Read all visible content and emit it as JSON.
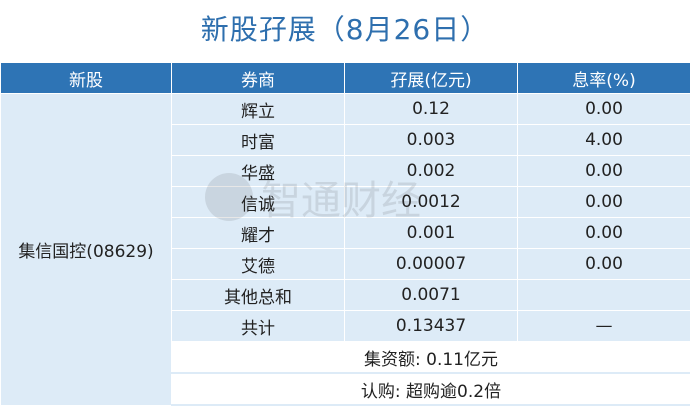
{
  "title": "新股孖展（8月26日）",
  "headers": [
    "新股",
    "券商",
    "孖展(亿元)",
    "息率(%)"
  ],
  "stock": "集信国控(08629)",
  "rows": [
    {
      "broker": "辉立",
      "margin": "0.12",
      "rate": "0.00"
    },
    {
      "broker": "时富",
      "margin": "0.003",
      "rate": "4.00"
    },
    {
      "broker": "华盛",
      "margin": "0.002",
      "rate": "0.00"
    },
    {
      "broker": "信诚",
      "margin": "0.0012",
      "rate": "0.00"
    },
    {
      "broker": "耀才",
      "margin": "0.001",
      "rate": "0.00"
    },
    {
      "broker": "艾德",
      "margin": "0.00007",
      "rate": "0.00"
    },
    {
      "broker": "其他总和",
      "margin": "0.0071",
      "rate": ""
    },
    {
      "broker": "共计",
      "margin": "0.13437",
      "rate": "—"
    }
  ],
  "fundraising": "集资额: 0.11亿元",
  "subscription": "认购: 超购逾0.2倍",
  "watermark": "智通财经",
  "colors": {
    "header": "#2e74b5",
    "cell": "#ddebf7",
    "title": "#2e6fae"
  }
}
